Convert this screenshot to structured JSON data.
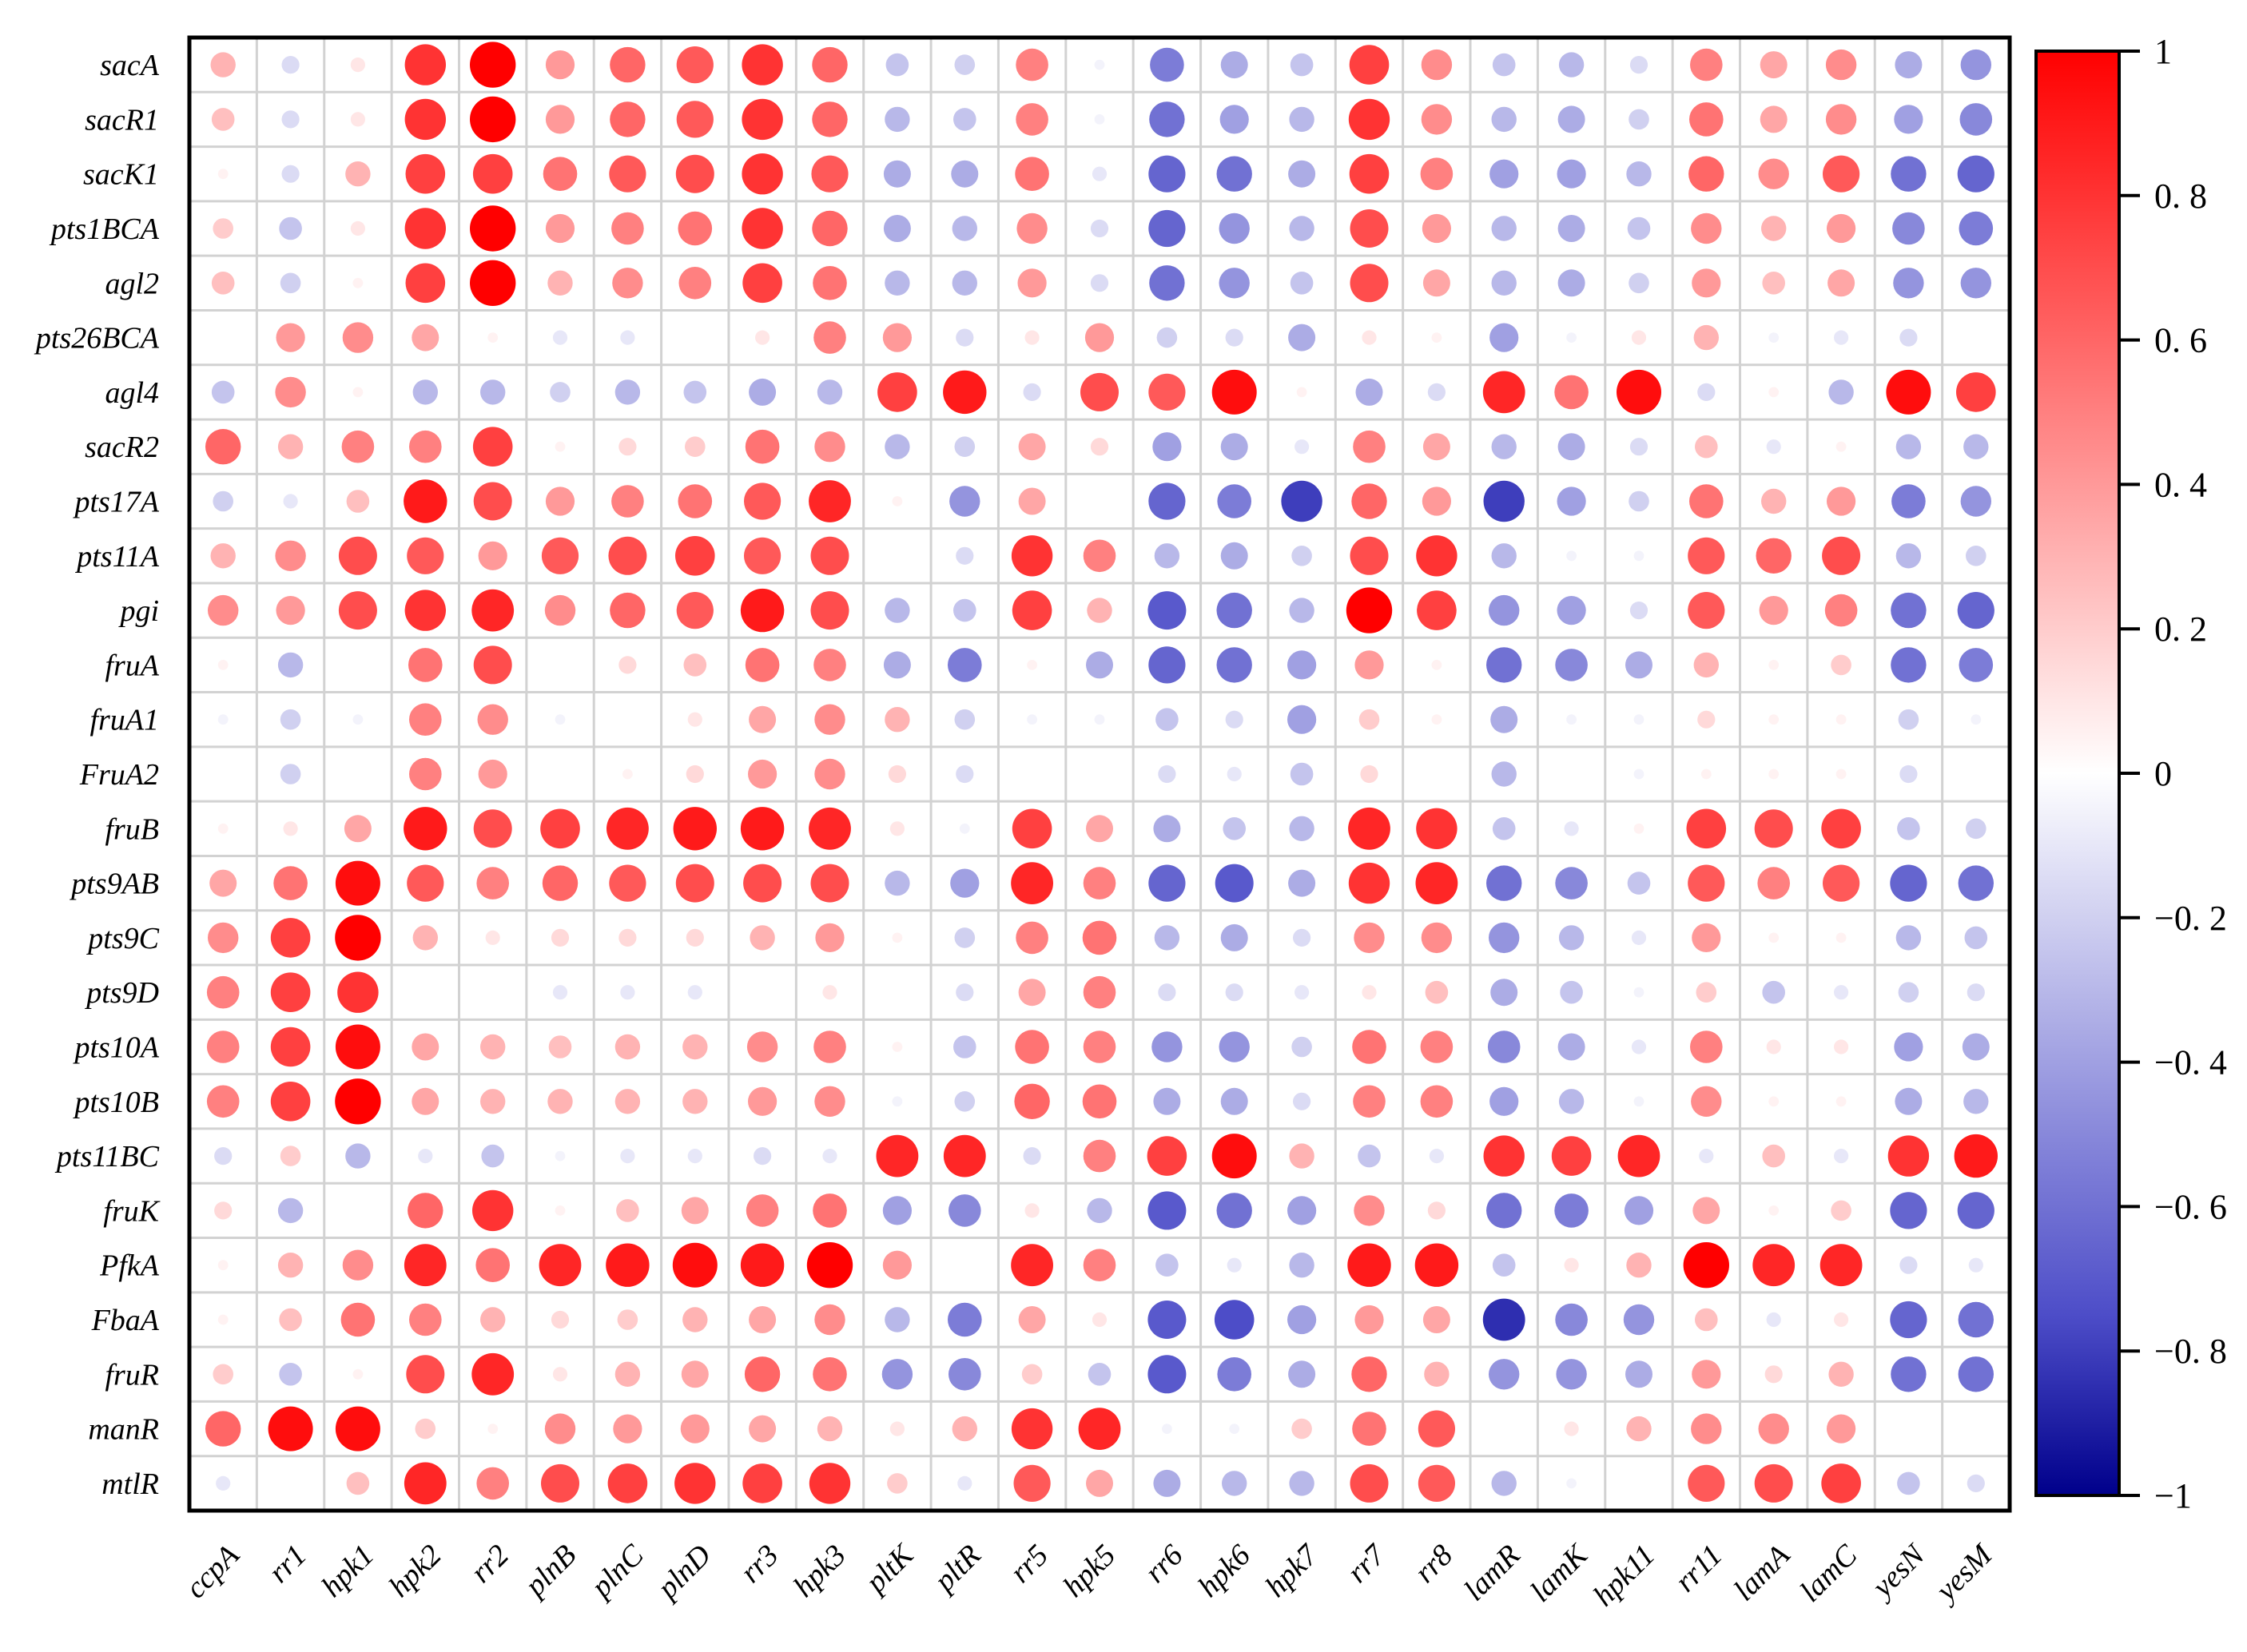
{
  "chart_data": {
    "type": "heatmap",
    "subtype": "correlation-dot-matrix",
    "title": "",
    "rows": [
      "sacA",
      "sacR1",
      "sacK1",
      "pts1BCA",
      "agl2",
      "pts26BCA",
      "agl4",
      "sacR2",
      "pts17A",
      "pts11A",
      "pgi",
      "fruA",
      "fruA1",
      "FruA2",
      "fruB",
      "pts9AB",
      "pts9C",
      "pts9D",
      "pts10A",
      "pts10B",
      "pts11BC",
      "fruK",
      "PfkA",
      "FbaA",
      "fruR",
      "manR",
      "mtlR"
    ],
    "columns": [
      "ccpA",
      "rr1",
      "hpk1",
      "hpk2",
      "rr2",
      "plnB",
      "plnC",
      "plnD",
      "rr3",
      "hpk3",
      "pltK",
      "pltR",
      "rr5",
      "hpk5",
      "rr6",
      "hpk6",
      "hpk7",
      "rr7",
      "rr8",
      "lamR",
      "lamK",
      "hpk11",
      "rr11",
      "lamA",
      "lamC",
      "yesN",
      "yesM"
    ],
    "values": [
      [
        0.3,
        -0.15,
        0.1,
        0.8,
        1.0,
        0.4,
        0.6,
        0.65,
        0.8,
        0.6,
        -0.25,
        -0.2,
        0.5,
        -0.05,
        -0.55,
        -0.35,
        -0.25,
        0.75,
        0.45,
        -0.25,
        -0.3,
        -0.15,
        0.5,
        0.35,
        0.45,
        -0.35,
        -0.45
      ],
      [
        0.25,
        -0.15,
        0.1,
        0.8,
        1.0,
        0.4,
        0.6,
        0.65,
        0.8,
        0.6,
        -0.3,
        -0.25,
        0.5,
        -0.05,
        -0.6,
        -0.4,
        -0.3,
        0.8,
        0.45,
        -0.3,
        -0.35,
        -0.2,
        0.55,
        0.35,
        0.45,
        -0.4,
        -0.5
      ],
      [
        0.05,
        -0.15,
        0.3,
        0.75,
        0.75,
        0.55,
        0.65,
        0.7,
        0.8,
        0.65,
        -0.35,
        -0.35,
        0.55,
        -0.1,
        -0.65,
        -0.6,
        -0.35,
        0.75,
        0.5,
        -0.4,
        -0.4,
        -0.3,
        0.6,
        0.45,
        0.65,
        -0.6,
        -0.65
      ],
      [
        0.2,
        -0.25,
        0.1,
        0.8,
        1.0,
        0.4,
        0.5,
        0.55,
        0.8,
        0.6,
        -0.35,
        -0.3,
        0.45,
        -0.15,
        -0.65,
        -0.45,
        -0.3,
        0.7,
        0.4,
        -0.3,
        -0.35,
        -0.25,
        0.45,
        0.3,
        0.4,
        -0.5,
        -0.55
      ],
      [
        0.25,
        -0.2,
        0.05,
        0.75,
        1.0,
        0.3,
        0.45,
        0.5,
        0.75,
        0.55,
        -0.3,
        -0.3,
        0.4,
        -0.15,
        -0.6,
        -0.45,
        -0.25,
        0.7,
        0.35,
        -0.3,
        -0.35,
        -0.2,
        0.4,
        0.25,
        0.35,
        -0.45,
        -0.45
      ],
      [
        0.0,
        0.4,
        0.45,
        0.35,
        0.05,
        -0.1,
        -0.1,
        0.0,
        0.1,
        0.5,
        0.4,
        -0.15,
        0.1,
        0.4,
        -0.2,
        -0.15,
        -0.35,
        0.1,
        0.05,
        -0.4,
        -0.05,
        0.1,
        0.3,
        -0.05,
        -0.1,
        -0.15,
        0.0
      ],
      [
        -0.25,
        0.45,
        0.05,
        -0.3,
        -0.3,
        -0.2,
        -0.3,
        -0.25,
        -0.35,
        -0.3,
        0.75,
        0.9,
        -0.15,
        0.7,
        0.65,
        0.95,
        0.05,
        -0.35,
        -0.15,
        0.85,
        0.55,
        0.95,
        -0.15,
        0.05,
        -0.3,
        0.95,
        0.75
      ],
      [
        0.6,
        0.3,
        0.5,
        0.5,
        0.75,
        0.05,
        0.15,
        0.2,
        0.55,
        0.45,
        -0.3,
        -0.2,
        0.35,
        0.15,
        -0.4,
        -0.35,
        -0.1,
        0.5,
        0.35,
        -0.3,
        -0.35,
        -0.15,
        0.25,
        -0.1,
        0.05,
        -0.3,
        -0.3
      ],
      [
        -0.2,
        -0.1,
        0.25,
        0.9,
        0.7,
        0.4,
        0.5,
        0.55,
        0.65,
        0.85,
        0.05,
        -0.45,
        0.35,
        0.0,
        -0.65,
        -0.55,
        -0.8,
        0.6,
        0.4,
        -0.8,
        -0.4,
        -0.2,
        0.55,
        0.3,
        0.4,
        -0.55,
        -0.45
      ],
      [
        0.3,
        0.45,
        0.7,
        0.65,
        0.4,
        0.65,
        0.7,
        0.75,
        0.65,
        0.7,
        0.0,
        -0.15,
        0.8,
        0.5,
        -0.3,
        -0.35,
        -0.2,
        0.7,
        0.8,
        -0.3,
        -0.05,
        -0.05,
        0.65,
        0.6,
        0.7,
        -0.3,
        -0.2
      ],
      [
        0.45,
        0.4,
        0.7,
        0.8,
        0.85,
        0.45,
        0.6,
        0.65,
        0.9,
        0.7,
        -0.3,
        -0.25,
        0.75,
        0.3,
        -0.7,
        -0.6,
        -0.3,
        1.0,
        0.75,
        -0.45,
        -0.4,
        -0.15,
        0.65,
        0.4,
        0.5,
        -0.6,
        -0.65
      ],
      [
        0.05,
        -0.3,
        0.0,
        0.55,
        0.7,
        0.0,
        0.15,
        0.25,
        0.55,
        0.5,
        -0.35,
        -0.55,
        0.05,
        -0.35,
        -0.65,
        -0.6,
        -0.4,
        0.4,
        0.05,
        -0.6,
        -0.5,
        -0.35,
        0.3,
        0.05,
        0.2,
        -0.6,
        -0.55
      ],
      [
        -0.05,
        -0.2,
        -0.05,
        0.5,
        0.45,
        -0.05,
        0.0,
        0.1,
        0.35,
        0.45,
        0.3,
        -0.2,
        -0.05,
        -0.05,
        -0.25,
        -0.15,
        -0.4,
        0.2,
        0.05,
        -0.35,
        -0.05,
        -0.05,
        0.15,
        0.05,
        0.05,
        -0.2,
        -0.05
      ],
      [
        0.0,
        -0.2,
        0.0,
        0.5,
        0.4,
        0.0,
        0.05,
        0.15,
        0.4,
        0.45,
        0.15,
        -0.15,
        0.0,
        0.0,
        -0.15,
        -0.1,
        -0.25,
        0.15,
        0.0,
        -0.3,
        0.0,
        -0.05,
        0.05,
        0.05,
        0.05,
        -0.15,
        0.0
      ],
      [
        0.05,
        0.1,
        0.35,
        0.9,
        0.7,
        0.75,
        0.85,
        0.9,
        0.9,
        0.85,
        0.1,
        -0.05,
        0.75,
        0.35,
        -0.35,
        -0.25,
        -0.3,
        0.85,
        0.8,
        -0.25,
        -0.1,
        0.05,
        0.75,
        0.7,
        0.75,
        -0.25,
        -0.2
      ],
      [
        0.35,
        0.55,
        0.95,
        0.65,
        0.5,
        0.6,
        0.65,
        0.7,
        0.7,
        0.7,
        -0.3,
        -0.4,
        0.85,
        0.5,
        -0.65,
        -0.7,
        -0.35,
        0.8,
        0.85,
        -0.6,
        -0.5,
        -0.25,
        0.65,
        0.5,
        0.65,
        -0.65,
        -0.6
      ],
      [
        0.45,
        0.75,
        1.0,
        0.3,
        0.1,
        0.15,
        0.15,
        0.15,
        0.3,
        0.4,
        0.05,
        -0.2,
        0.5,
        0.55,
        -0.3,
        -0.35,
        -0.15,
        0.45,
        0.45,
        -0.45,
        -0.3,
        -0.1,
        0.4,
        0.05,
        0.05,
        -0.3,
        -0.25
      ],
      [
        0.5,
        0.75,
        0.8,
        0.0,
        0.0,
        -0.1,
        -0.1,
        -0.1,
        0.0,
        0.1,
        0.0,
        -0.15,
        0.35,
        0.5,
        -0.15,
        -0.15,
        -0.1,
        0.1,
        0.25,
        -0.35,
        -0.25,
        -0.05,
        0.2,
        -0.25,
        -0.1,
        -0.2,
        -0.15
      ],
      [
        0.5,
        0.75,
        0.95,
        0.35,
        0.3,
        0.25,
        0.3,
        0.3,
        0.45,
        0.5,
        0.05,
        -0.25,
        0.55,
        0.5,
        -0.45,
        -0.45,
        -0.2,
        0.55,
        0.5,
        -0.5,
        -0.35,
        -0.1,
        0.5,
        0.1,
        0.1,
        -0.4,
        -0.35
      ],
      [
        0.5,
        0.75,
        1.0,
        0.35,
        0.3,
        0.3,
        0.3,
        0.3,
        0.4,
        0.45,
        -0.05,
        -0.2,
        0.6,
        0.55,
        -0.35,
        -0.35,
        -0.15,
        0.5,
        0.5,
        -0.4,
        -0.3,
        -0.05,
        0.45,
        0.05,
        0.05,
        -0.35,
        -0.3
      ],
      [
        -0.15,
        0.2,
        -0.3,
        -0.1,
        -0.25,
        -0.05,
        -0.1,
        -0.1,
        -0.15,
        -0.1,
        0.85,
        0.85,
        -0.15,
        0.5,
        0.75,
        0.95,
        0.3,
        -0.25,
        -0.1,
        0.8,
        0.75,
        0.85,
        -0.1,
        0.25,
        -0.1,
        0.8,
        0.9
      ],
      [
        0.15,
        -0.3,
        0.0,
        0.6,
        0.8,
        0.05,
        0.25,
        0.35,
        0.5,
        0.55,
        -0.4,
        -0.5,
        0.1,
        -0.3,
        -0.7,
        -0.6,
        -0.4,
        0.45,
        0.15,
        -0.6,
        -0.55,
        -0.4,
        0.35,
        0.05,
        0.2,
        -0.65,
        -0.65
      ],
      [
        0.05,
        0.3,
        0.45,
        0.85,
        0.55,
        0.85,
        0.9,
        0.95,
        0.9,
        1.0,
        0.4,
        0.0,
        0.85,
        0.5,
        -0.25,
        -0.1,
        -0.3,
        0.9,
        0.9,
        -0.25,
        0.1,
        0.3,
        1.0,
        0.85,
        0.85,
        -0.15,
        -0.1
      ],
      [
        0.05,
        0.25,
        0.55,
        0.5,
        0.3,
        0.15,
        0.2,
        0.3,
        0.35,
        0.45,
        -0.3,
        -0.55,
        0.35,
        0.1,
        -0.7,
        -0.75,
        -0.4,
        0.4,
        0.35,
        -0.85,
        -0.5,
        -0.45,
        0.25,
        -0.1,
        0.1,
        -0.65,
        -0.6
      ],
      [
        0.2,
        -0.25,
        0.05,
        0.7,
        0.85,
        0.1,
        0.3,
        0.35,
        0.6,
        0.55,
        -0.45,
        -0.5,
        0.2,
        -0.25,
        -0.7,
        -0.55,
        -0.35,
        0.6,
        0.3,
        -0.45,
        -0.45,
        -0.35,
        0.4,
        0.15,
        0.3,
        -0.6,
        -0.6
      ],
      [
        0.6,
        0.95,
        0.95,
        0.2,
        0.05,
        0.45,
        0.4,
        0.4,
        0.35,
        0.3,
        0.1,
        0.3,
        0.8,
        0.85,
        -0.05,
        -0.05,
        0.2,
        0.55,
        0.65,
        0.0,
        0.1,
        0.3,
        0.45,
        0.45,
        0.4,
        0.0,
        0.0
      ],
      [
        -0.1,
        0.0,
        0.25,
        0.85,
        0.5,
        0.7,
        0.75,
        0.8,
        0.75,
        0.8,
        0.2,
        -0.1,
        0.65,
        0.35,
        -0.35,
        -0.3,
        -0.3,
        0.7,
        0.65,
        -0.3,
        -0.05,
        0.0,
        0.65,
        0.7,
        0.75,
        -0.25,
        -0.15
      ]
    ],
    "colorbar": {
      "range": [
        -1,
        1
      ],
      "ticks": [
        1,
        0.8,
        0.6,
        0.4,
        0.2,
        0,
        -0.2,
        -0.4,
        -0.6,
        -0.8,
        -1
      ],
      "tick_labels": [
        "1",
        "0. 8",
        "0. 6",
        "0. 4",
        "0. 2",
        "0",
        "−0. 2",
        "−0. 4",
        "−0. 6",
        "−0. 8",
        "−1"
      ],
      "colors": {
        "negative": "#00008b",
        "zero": "#ffffff",
        "positive": "#ff0000",
        "mid_negative": "#4d4dc8"
      }
    },
    "xlabel": "",
    "ylabel": "",
    "grid": true,
    "legend_position": "right"
  }
}
